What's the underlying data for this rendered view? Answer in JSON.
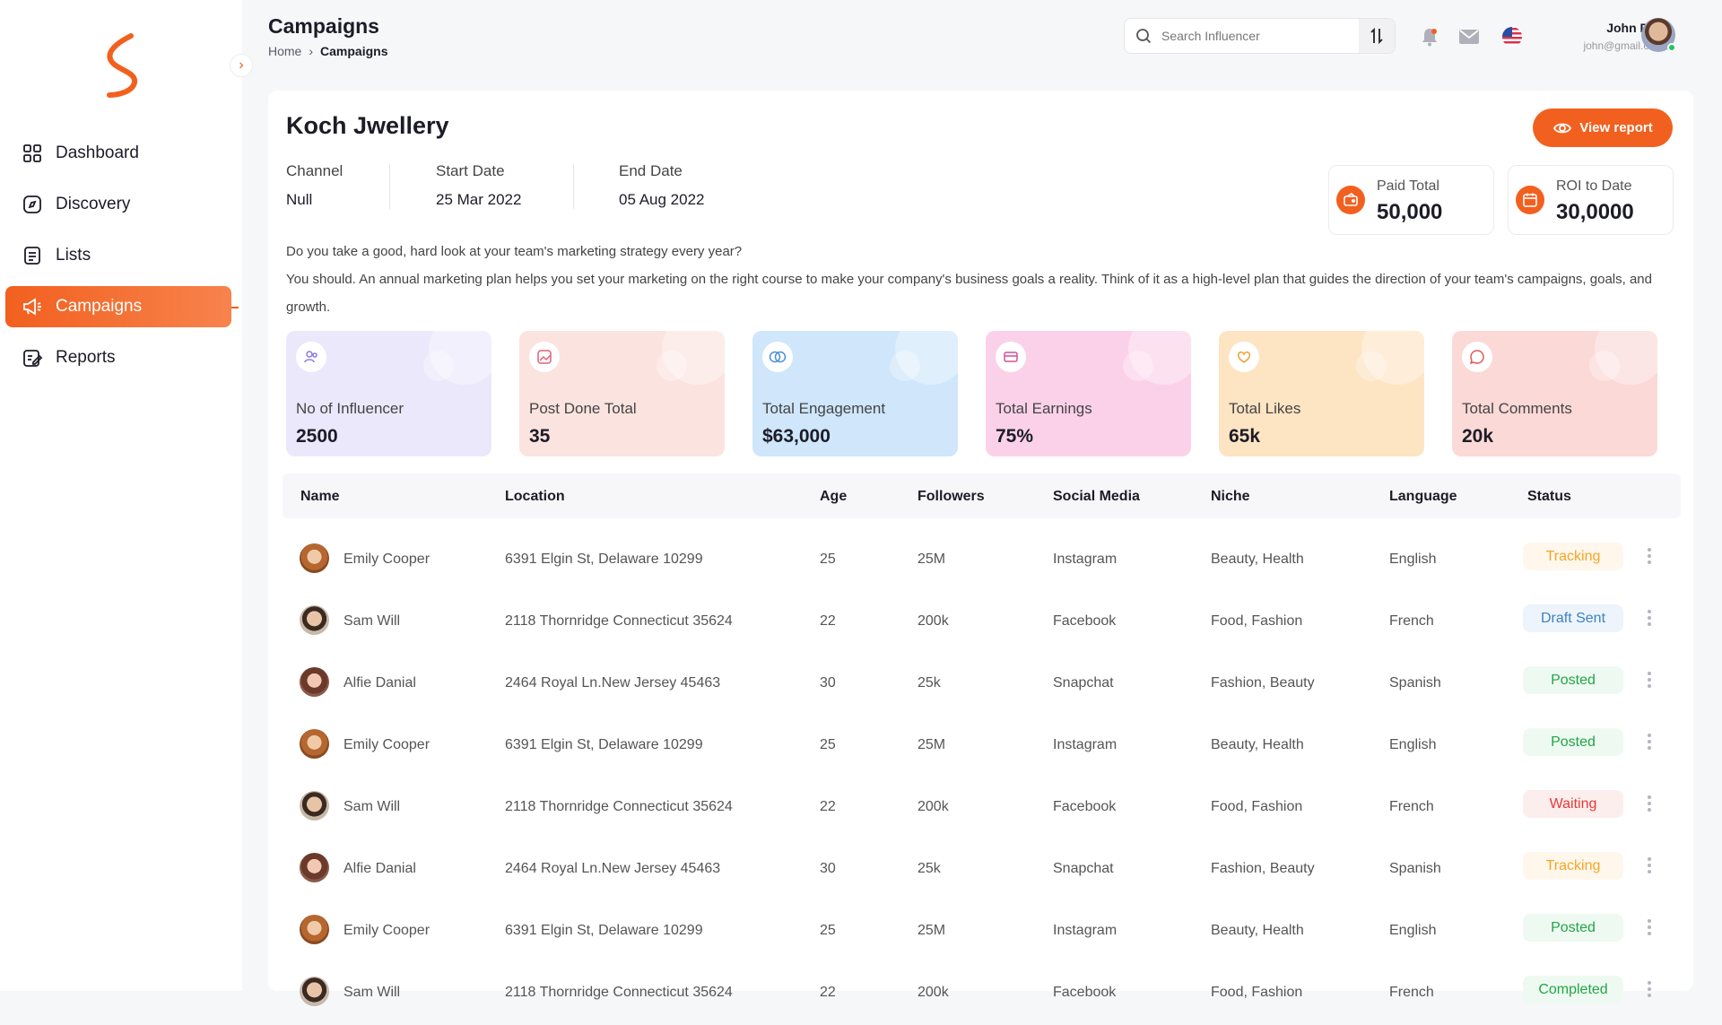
{
  "sidebar": {
    "items": [
      {
        "label": "Dashboard",
        "icon": "dashboard-grid-icon"
      },
      {
        "label": "Discovery",
        "icon": "compass-icon"
      },
      {
        "label": "Lists",
        "icon": "list-doc-icon"
      },
      {
        "label": "Campaigns",
        "icon": "megaphone-icon",
        "active": true
      },
      {
        "label": "Reports",
        "icon": "report-edit-icon"
      }
    ]
  },
  "header": {
    "title": "Campaigns",
    "breadcrumb": [
      "Home",
      "Campaigns"
    ],
    "search_placeholder": "Search Influencer",
    "user": {
      "name": "John Doe",
      "email": "john@gmail.com"
    }
  },
  "campaign": {
    "name": "Koch Jwellery",
    "view_report_label": "View report",
    "meta": [
      {
        "label": "Channel",
        "value": "Null"
      },
      {
        "label": "Start Date",
        "value": "25 Mar 2022"
      },
      {
        "label": "End Date",
        "value": "05 Aug 2022"
      }
    ],
    "kpis": [
      {
        "label": "Paid Total",
        "value": "50,000",
        "icon": "wallet-icon"
      },
      {
        "label": "ROI to Date",
        "value": "30,0000",
        "icon": "calendar-icon"
      }
    ],
    "description_1": "Do you take a good, hard look at your team's marketing strategy every year?",
    "description_2": "You should. An annual marketing plan helps you set your marketing on the right course to make your company's business goals a reality. Think of it as a high-level plan that guides the direction of your team's campaigns, goals, and growth."
  },
  "stats": [
    {
      "label": "No of Influencer",
      "value": "2500",
      "color": "#ece8fb",
      "icon": "users-icon"
    },
    {
      "label": "Post Done Total",
      "value": "35",
      "color": "#fbe3df",
      "icon": "image-post-icon"
    },
    {
      "label": "Total Engagement",
      "value": "$63,000",
      "color": "#cfe6fb",
      "icon": "rings-icon"
    },
    {
      "label": "Total Earnings",
      "value": "75%",
      "color": "#fbd1ea",
      "icon": "card-icon"
    },
    {
      "label": "Total Likes",
      "value": "65k",
      "color": "#fde4c3",
      "icon": "heart-icon"
    },
    {
      "label": "Total Comments",
      "value": "20k",
      "color": "#fbd9d7",
      "icon": "comment-icon"
    }
  ],
  "table": {
    "headers": [
      "Name",
      "Location",
      "Age",
      "Followers",
      "Social Media",
      "Niche",
      "Language",
      "Status"
    ],
    "rows": [
      {
        "name": "Emily Cooper",
        "location": "6391 Elgin St, Delaware 10299",
        "age": "25",
        "followers": "25M",
        "social": "Instagram",
        "niche": "Beauty, Health",
        "language": "English",
        "status": "Tracking"
      },
      {
        "name": "Sam Will",
        "location": "2118 Thornridge Connecticut 35624",
        "age": "22",
        "followers": "200k",
        "social": "Facebook",
        "niche": "Food, Fashion",
        "language": "French",
        "status": "Draft Sent"
      },
      {
        "name": "Alfie Danial",
        "location": "2464 Royal Ln.New Jersey 45463",
        "age": "30",
        "followers": "25k",
        "social": "Snapchat",
        "niche": "Fashion, Beauty",
        "language": "Spanish",
        "status": "Posted"
      },
      {
        "name": "Emily Cooper",
        "location": "6391 Elgin St, Delaware 10299",
        "age": "25",
        "followers": "25M",
        "social": "Instagram",
        "niche": "Beauty, Health",
        "language": "English",
        "status": "Posted"
      },
      {
        "name": "Sam Will",
        "location": "2118 Thornridge Connecticut 35624",
        "age": "22",
        "followers": "200k",
        "social": "Facebook",
        "niche": "Food, Fashion",
        "language": "French",
        "status": "Waiting"
      },
      {
        "name": "Alfie Danial",
        "location": "2464 Royal Ln.New Jersey 45463",
        "age": "30",
        "followers": "25k",
        "social": "Snapchat",
        "niche": "Fashion, Beauty",
        "language": "Spanish",
        "status": "Tracking"
      },
      {
        "name": "Emily Cooper",
        "location": "6391 Elgin St, Delaware 10299",
        "age": "25",
        "followers": "25M",
        "social": "Instagram",
        "niche": "Beauty, Health",
        "language": "English",
        "status": "Posted"
      },
      {
        "name": "Sam Will",
        "location": "2118 Thornridge Connecticut 35624",
        "age": "22",
        "followers": "200k",
        "social": "Facebook",
        "niche": "Food, Fashion",
        "language": "French",
        "status": "Completed"
      }
    ]
  },
  "colors": {
    "accent": "#f2601f"
  }
}
